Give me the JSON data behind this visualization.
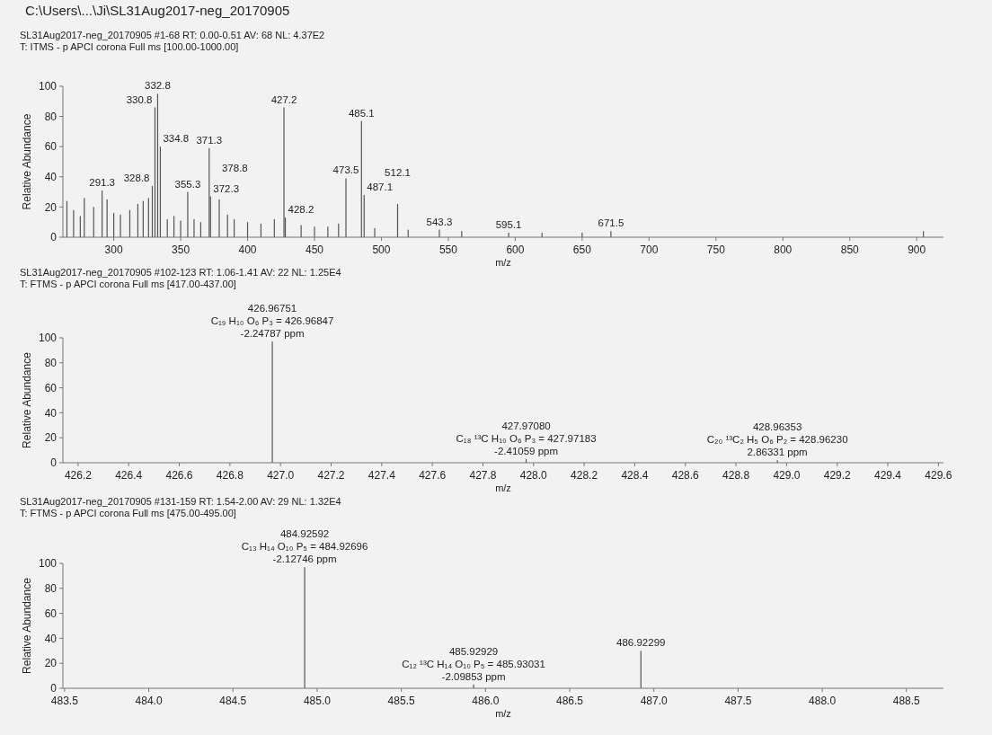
{
  "chart_data": [
    {
      "type": "bar",
      "title": "SL31Aug2017-neg_20170905 #1-68  RT: 0.00-0.51  AV: 68  NL: 4.37E2",
      "subtitle": "T: ITMS - p APCI corona Full ms [100.00-1000.00]",
      "xlabel": "m/z",
      "ylabel": "Relative Abundance",
      "x": [
        265,
        270,
        275,
        278,
        285,
        291.3,
        295,
        300,
        305,
        312,
        318,
        322,
        326,
        328.8,
        330.8,
        332.8,
        334.8,
        340,
        345,
        350,
        355.3,
        360,
        365,
        371.3,
        372.3,
        378.8,
        385,
        390,
        400,
        410,
        420,
        427.2,
        428.2,
        440,
        450,
        460,
        468,
        473.5,
        485.1,
        487.1,
        495,
        512.1,
        520,
        543.3,
        560,
        595.1,
        620,
        650,
        671.5,
        905
      ],
      "values": [
        24,
        18,
        14,
        26,
        20,
        31,
        25,
        16,
        15,
        18,
        22,
        24,
        26,
        34,
        86,
        95,
        60,
        12,
        14,
        11,
        30,
        12,
        10,
        59,
        27,
        25,
        15,
        12,
        10,
        9,
        12,
        86,
        13,
        8,
        7,
        7,
        9,
        39,
        77,
        28,
        6,
        22,
        5,
        5,
        4,
        3,
        3,
        3,
        4,
        4
      ],
      "color": "#555555",
      "xlim": [
        262,
        920
      ],
      "ylim": [
        0,
        100
      ],
      "xticks": [
        300,
        350,
        400,
        450,
        500,
        550,
        600,
        650,
        700,
        750,
        800,
        850,
        900
      ],
      "yticks": [
        0,
        20,
        40,
        60,
        80,
        100
      ],
      "annotations": [
        "C:\\Users\\...\\Ji\\SL31Aug2017-neg_20170905",
        {
          "text": "291.3",
          "x": 291.3,
          "y": 31
        },
        {
          "text": "328.8",
          "x": 328.8,
          "y": 34
        },
        {
          "text": "330.8",
          "x": 330.8,
          "y": 86
        },
        {
          "text": "332.8",
          "x": 332.8,
          "y": 95
        },
        {
          "text": "334.8",
          "x": 334.8,
          "y": 60
        },
        {
          "text": "355.3",
          "x": 355.3,
          "y": 30
        },
        {
          "text": "371.3",
          "x": 371.3,
          "y": 59
        },
        {
          "text": "372.3",
          "x": 372.3,
          "y": 27
        },
        {
          "text": "378.8",
          "x": 378.8,
          "y": 25
        },
        {
          "text": "427.2",
          "x": 427.2,
          "y": 86
        },
        {
          "text": "428.2",
          "x": 428.2,
          "y": 13
        },
        {
          "text": "473.5",
          "x": 473.5,
          "y": 39
        },
        {
          "text": "485.1",
          "x": 485.1,
          "y": 77
        },
        {
          "text": "487.1",
          "x": 487.1,
          "y": 28
        },
        {
          "text": "512.1",
          "x": 512.1,
          "y": 22
        },
        {
          "text": "543.3",
          "x": 543.3,
          "y": 5
        },
        {
          "text": "595.1",
          "x": 595.1,
          "y": 3
        },
        {
          "text": "671.5",
          "x": 671.5,
          "y": 4
        }
      ]
    },
    {
      "type": "bar",
      "title": "SL31Aug2017-neg_20170905 #102-123  RT: 1.06-1.41  AV: 22  NL: 1.25E4",
      "subtitle": "T: FTMS - p APCI corona Full ms [417.00-437.00]",
      "xlabel": "m/z",
      "ylabel": "Relative Abundance",
      "x": [
        426.96751,
        427.9708,
        428.96353
      ],
      "values": [
        97,
        3,
        2
      ],
      "color": "#555555",
      "xlim": [
        426.14,
        429.62
      ],
      "ylim": [
        0,
        100
      ],
      "xticks": [
        426.2,
        426.4,
        426.6,
        426.8,
        {
          "value": 427,
          "label": "427.0"
        },
        427.2,
        427.4,
        427.6,
        427.8,
        {
          "value": 428,
          "label": "428.0"
        },
        428.2,
        428.4,
        428.6,
        428.8,
        {
          "value": 429,
          "label": "429.0"
        },
        429.2,
        429.4,
        429.6
      ],
      "yticks": [
        0,
        20,
        40,
        60,
        80,
        100
      ],
      "annotations": [
        {
          "text": "426.96751\nC₁₉ H₁₀ O₆ P₃ = 426.96847\n-2.24787 ppm",
          "x": 426.96751,
          "y": 97
        },
        {
          "text": "427.97080\nC₁₈ ¹³C H₁₀ O₆ P₃ = 427.97183\n-2.41059 ppm",
          "x": 427.9708,
          "y": 3
        },
        {
          "text": "428.96353\nC₂₀ ¹³C₂ H₅ O₆ P₂ = 428.96230\n2.86331 ppm",
          "x": 428.96353,
          "y": 2
        }
      ]
    },
    {
      "type": "bar",
      "title": "SL31Aug2017-neg_20170905 #131-159  RT: 1.54-2.00  AV: 29  NL: 1.32E4",
      "subtitle": "T: FTMS - p APCI corona Full ms [475.00-495.00]",
      "xlabel": "m/z",
      "ylabel": "Relative Abundance",
      "x": [
        484.92592,
        485.92929,
        486.92299
      ],
      "values": [
        97,
        3,
        30
      ],
      "color": "#555555",
      "xlim": [
        483.49,
        488.72
      ],
      "ylim": [
        0,
        100
      ],
      "xticks": [
        483.5,
        {
          "value": 484,
          "label": "484.0"
        },
        484.5,
        {
          "value": 485,
          "label": "485.0"
        },
        485.5,
        {
          "value": 486,
          "label": "486.0"
        },
        486.5,
        {
          "value": 487,
          "label": "487.0"
        },
        487.5,
        {
          "value": 488,
          "label": "488.0"
        },
        488.5
      ],
      "yticks": [
        0,
        20,
        40,
        60,
        80,
        100
      ],
      "annotations": [
        {
          "text": "484.92592\nC₁₃ H₁₄ O₁₀ P₅ = 484.92696\n-2.12746 ppm",
          "x": 484.92592,
          "y": 97
        },
        {
          "text": "485.92929\nC₁₂ ¹³C H₁₄ O₁₀ P₅ = 485.93031\n-2.09853 ppm",
          "x": 485.92929,
          "y": 3
        },
        {
          "text": "486.92299",
          "x": 486.92299,
          "y": 30
        }
      ]
    }
  ]
}
